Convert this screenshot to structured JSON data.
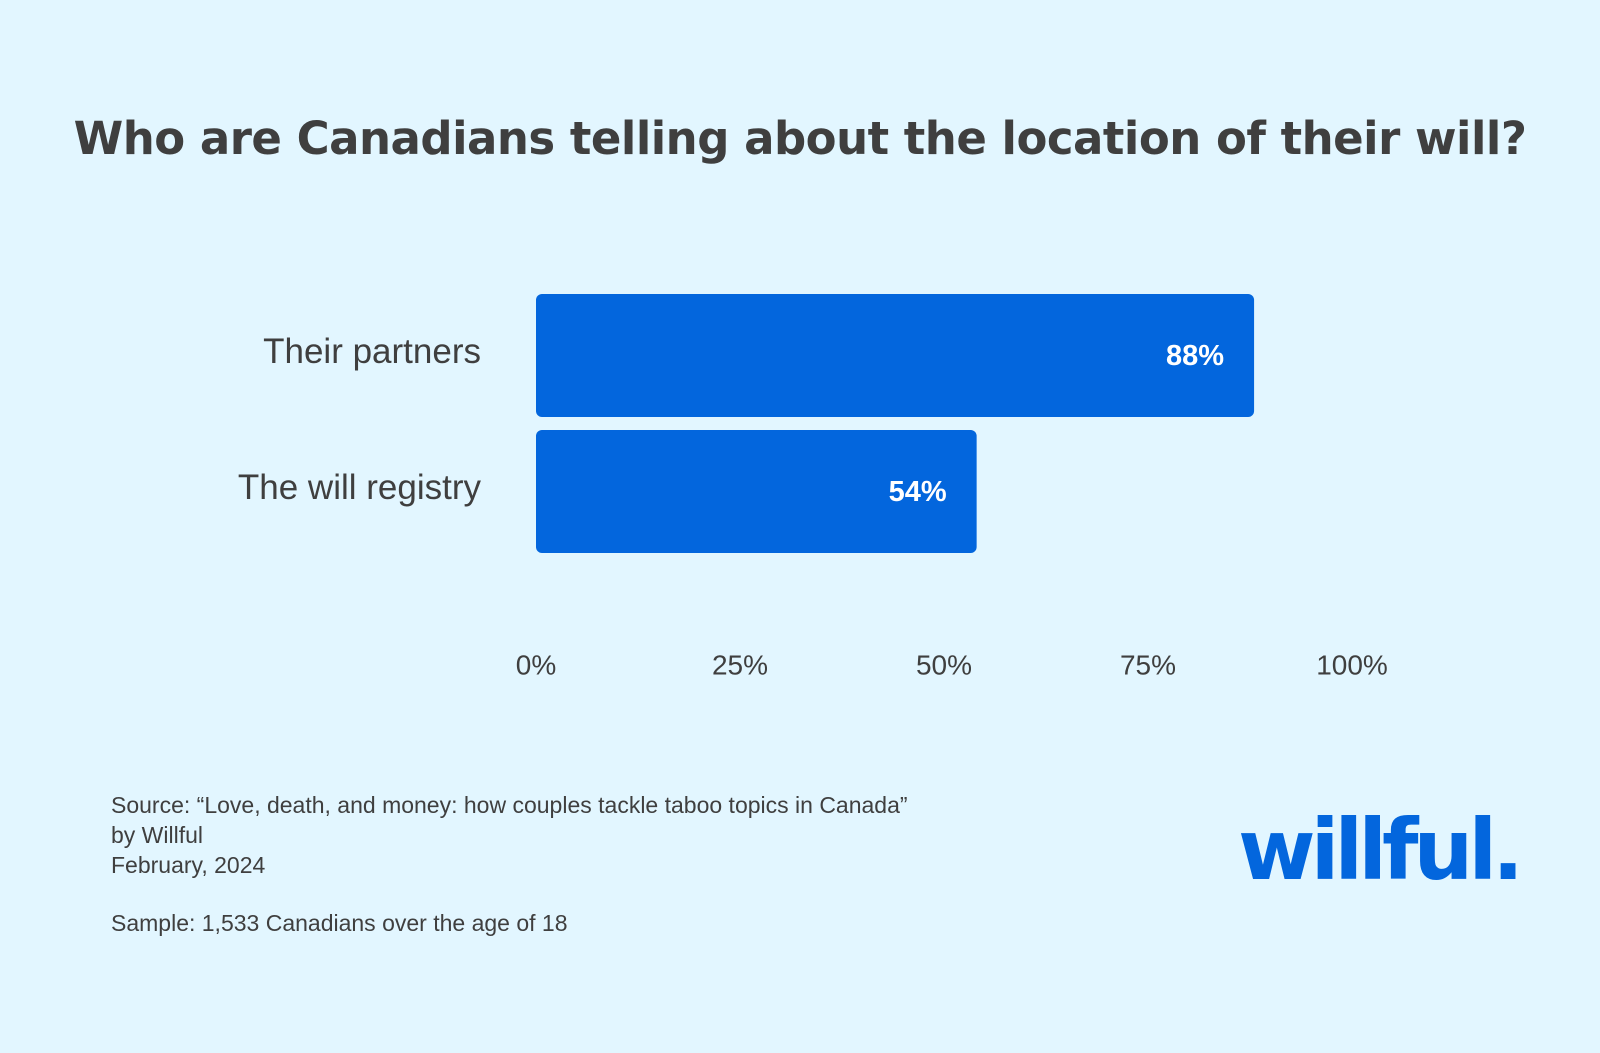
{
  "title": "Who are Canadians telling about the location of their will?",
  "chart_data": {
    "type": "bar",
    "orientation": "horizontal",
    "categories": [
      "Their partners",
      "The will registry"
    ],
    "values": [
      88,
      54
    ],
    "value_labels": [
      "88%",
      "54%"
    ],
    "xlim": [
      0,
      100
    ],
    "xticks": [
      0,
      25,
      50,
      75,
      100
    ],
    "xtick_labels": [
      "0%",
      "25%",
      "50%",
      "75%",
      "100%"
    ],
    "grid": false,
    "bar_color": "#0366dd"
  },
  "footnote": {
    "source_line1": "Source: “Love, death, and money: how couples tackle taboo topics in Canada”",
    "source_line2": "by Willful",
    "date": "February, 2024",
    "sample": "Sample: 1,533 Canadians over the age of 18"
  },
  "brand": {
    "logo_text": "willful.",
    "color": "#0366dd"
  },
  "colors": {
    "background": "#e2f6ff",
    "text": "#3f3f3f"
  }
}
